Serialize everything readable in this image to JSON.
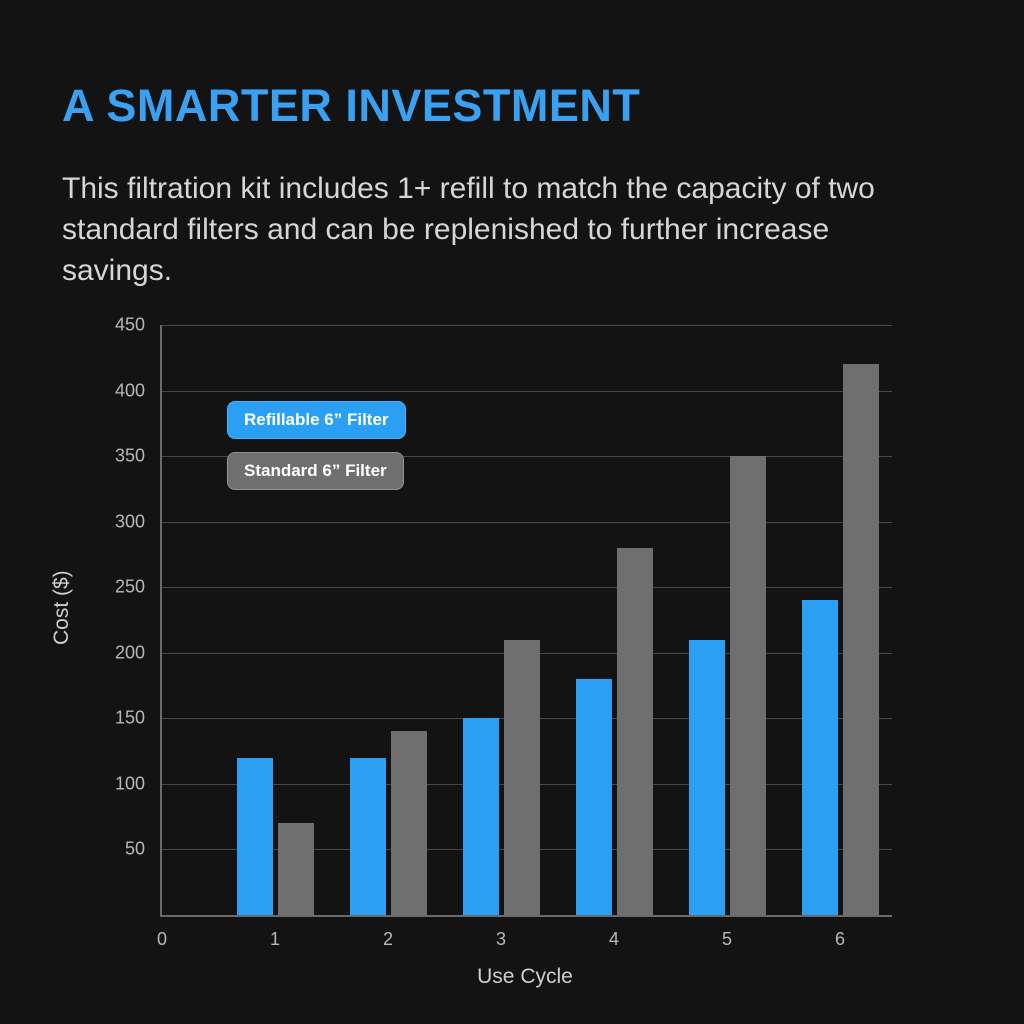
{
  "page": {
    "title": "A SMARTER INVESTMENT",
    "description": "This filtration kit includes 1+ refill to match the capacity of two standard filters and can be replenished to further increase savings."
  },
  "chart_data": {
    "type": "bar",
    "title": "",
    "categories": [
      1,
      2,
      3,
      4,
      5,
      6
    ],
    "series": [
      {
        "name": "Refillable 6” Filter",
        "color": "#2b9ff4",
        "values": [
          120,
          120,
          150,
          180,
          210,
          240
        ]
      },
      {
        "name": "Standard 6” Filter",
        "color": "#6f6f6f",
        "values": [
          70,
          140,
          210,
          280,
          350,
          420
        ]
      }
    ],
    "xlabel": "Use Cycle",
    "ylabel": "Cost ($)",
    "ylim": [
      0,
      450
    ],
    "ytick_step": 50,
    "x_ticks": [
      "0",
      "1",
      "2",
      "3",
      "4",
      "5",
      "6"
    ],
    "legend_position": "upper-left-inside",
    "grid": true
  },
  "colors": {
    "background": "#131313",
    "title": "#3aa1f2",
    "body_text": "#d6d6d6",
    "axis_line": "#6a6a6a",
    "gridline": "#474747",
    "tick_text": "#b8b8b8",
    "refillable_bar": "#2b9ff4",
    "standard_bar": "#6f6f6f"
  }
}
